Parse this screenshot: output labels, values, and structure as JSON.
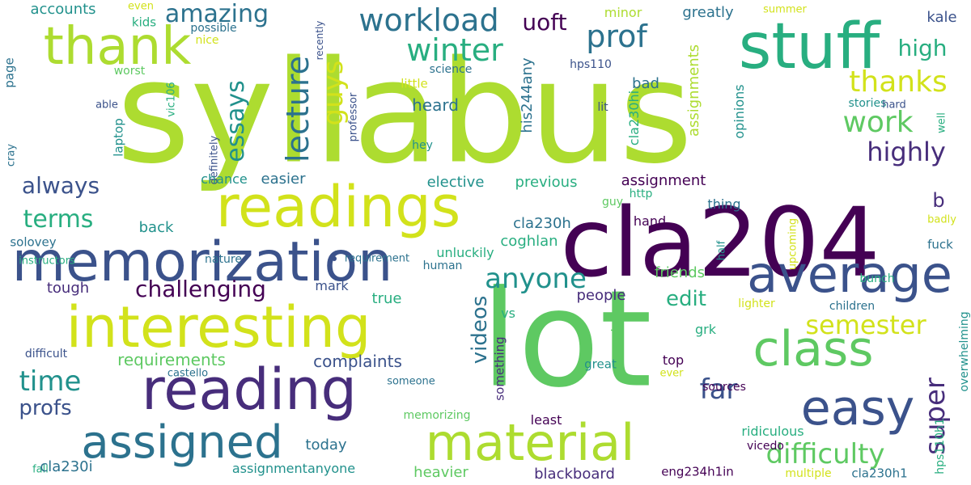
{
  "colors": {
    "purple": "#440154",
    "indigo": "#472d7b",
    "blue": "#3b528b",
    "slate": "#2c728e",
    "teal": "#21918c",
    "green": "#28ae80",
    "lime_green": "#5ec962",
    "yellow_green": "#addc30",
    "yellow": "#d2e21b"
  },
  "words": [
    {
      "text": "syllabus",
      "color": "yellow_green"
    },
    {
      "text": "cla204",
      "color": "purple"
    },
    {
      "text": "lot",
      "color": "lime_green"
    },
    {
      "text": "stuff",
      "color": "green"
    },
    {
      "text": "thank",
      "color": "yellow_green"
    },
    {
      "text": "readings",
      "color": "yellow"
    },
    {
      "text": "memorization",
      "color": "blue"
    },
    {
      "text": "interesting",
      "color": "yellow"
    },
    {
      "text": "average",
      "color": "blue"
    },
    {
      "text": "reading",
      "color": "indigo"
    },
    {
      "text": "class",
      "color": "lime_green"
    },
    {
      "text": "easy",
      "color": "blue"
    },
    {
      "text": "material",
      "color": "yellow_green"
    },
    {
      "text": "assigned",
      "color": "slate"
    },
    {
      "text": "workload",
      "color": "slate"
    },
    {
      "text": "winter",
      "color": "green"
    },
    {
      "text": "prof",
      "color": "slate"
    },
    {
      "text": "lecture",
      "color": "slate"
    },
    {
      "text": "guys",
      "color": "yellow"
    },
    {
      "text": "essays",
      "color": "teal"
    },
    {
      "text": "amazing",
      "color": "slate"
    },
    {
      "text": "uoft",
      "color": "purple"
    },
    {
      "text": "thanks",
      "color": "yellow"
    },
    {
      "text": "high",
      "color": "green"
    },
    {
      "text": "work",
      "color": "lime_green"
    },
    {
      "text": "highly",
      "color": "indigo"
    },
    {
      "text": "terms",
      "color": "green"
    },
    {
      "text": "always",
      "color": "blue"
    },
    {
      "text": "anyone",
      "color": "teal"
    },
    {
      "text": "challenging",
      "color": "purple"
    },
    {
      "text": "semester",
      "color": "yellow"
    },
    {
      "text": "edit",
      "color": "green"
    },
    {
      "text": "time",
      "color": "teal"
    },
    {
      "text": "far",
      "color": "blue"
    },
    {
      "text": "super",
      "color": "indigo"
    },
    {
      "text": "difficulty",
      "color": "lime_green"
    },
    {
      "text": "profs",
      "color": "blue"
    },
    {
      "text": "videos",
      "color": "slate"
    },
    {
      "text": "complaints",
      "color": "blue"
    },
    {
      "text": "requirements",
      "color": "lime_green"
    },
    {
      "text": "accounts",
      "color": "teal"
    },
    {
      "text": "kids",
      "color": "green"
    },
    {
      "text": "even",
      "color": "yellow"
    },
    {
      "text": "possible",
      "color": "slate"
    },
    {
      "text": "nice",
      "color": "yellow"
    },
    {
      "text": "recently",
      "color": "blue"
    },
    {
      "text": "minor",
      "color": "yellow_green"
    },
    {
      "text": "greatly",
      "color": "slate"
    },
    {
      "text": "summer",
      "color": "yellow"
    },
    {
      "text": "kale",
      "color": "blue"
    },
    {
      "text": "page",
      "color": "slate"
    },
    {
      "text": "worst",
      "color": "lime_green"
    },
    {
      "text": "vic106",
      "color": "green"
    },
    {
      "text": "science",
      "color": "slate"
    },
    {
      "text": "his244any",
      "color": "slate"
    },
    {
      "text": "hps110",
      "color": "blue"
    },
    {
      "text": "assignments",
      "color": "yellow_green"
    },
    {
      "text": "opinions",
      "color": "teal"
    },
    {
      "text": "little",
      "color": "yellow"
    },
    {
      "text": "bad",
      "color": "slate"
    },
    {
      "text": "able",
      "color": "blue"
    },
    {
      "text": "laptop",
      "color": "teal"
    },
    {
      "text": "professor",
      "color": "blue"
    },
    {
      "text": "heard",
      "color": "slate"
    },
    {
      "text": "cla230hi",
      "color": "green"
    },
    {
      "text": "lit",
      "color": "blue"
    },
    {
      "text": "stories",
      "color": "teal"
    },
    {
      "text": "hard",
      "color": "blue"
    },
    {
      "text": "well",
      "color": "green"
    },
    {
      "text": "definitely",
      "color": "blue"
    },
    {
      "text": "hey",
      "color": "teal"
    },
    {
      "text": "cray",
      "color": "slate"
    },
    {
      "text": "chance",
      "color": "teal"
    },
    {
      "text": "easier",
      "color": "slate"
    },
    {
      "text": "elective",
      "color": "teal"
    },
    {
      "text": "previous",
      "color": "green"
    },
    {
      "text": "assignment",
      "color": "purple"
    },
    {
      "text": "b",
      "color": "indigo"
    },
    {
      "text": "solovey",
      "color": "slate"
    },
    {
      "text": "guy",
      "color": "lime_green"
    },
    {
      "text": "http",
      "color": "green"
    },
    {
      "text": "thing",
      "color": "slate"
    },
    {
      "text": "badly",
      "color": "yellow"
    },
    {
      "text": "back",
      "color": "teal"
    },
    {
      "text": "cla230h",
      "color": "slate"
    },
    {
      "text": "hand",
      "color": "purple"
    },
    {
      "text": "instructors",
      "color": "green"
    },
    {
      "text": "nature",
      "color": "slate"
    },
    {
      "text": "requirement",
      "color": "slate"
    },
    {
      "text": "coghlan",
      "color": "green"
    },
    {
      "text": "half",
      "color": "teal"
    },
    {
      "text": "upcoming",
      "color": "yellow"
    },
    {
      "text": "fuck",
      "color": "slate"
    },
    {
      "text": "unluckily",
      "color": "green"
    },
    {
      "text": "tough",
      "color": "indigo"
    },
    {
      "text": "human",
      "color": "slate"
    },
    {
      "text": "friends",
      "color": "lime_green"
    },
    {
      "text": "bunch",
      "color": "green"
    },
    {
      "text": "mark",
      "color": "blue"
    },
    {
      "text": "true",
      "color": "green"
    },
    {
      "text": "people",
      "color": "indigo"
    },
    {
      "text": "lighter",
      "color": "yellow"
    },
    {
      "text": "children",
      "color": "slate"
    },
    {
      "text": "grk",
      "color": "green"
    },
    {
      "text": "vs",
      "color": "green"
    },
    {
      "text": "difficult",
      "color": "blue"
    },
    {
      "text": "something",
      "color": "indigo"
    },
    {
      "text": "greek",
      "color": "lime_green"
    },
    {
      "text": "top",
      "color": "purple"
    },
    {
      "text": "great",
      "color": "teal"
    },
    {
      "text": "castello",
      "color": "slate"
    },
    {
      "text": "someone",
      "color": "slate"
    },
    {
      "text": "ever",
      "color": "yellow"
    },
    {
      "text": "sources",
      "color": "purple"
    },
    {
      "text": "overwhelming",
      "color": "teal"
    },
    {
      "text": "hps110h1",
      "color": "green"
    },
    {
      "text": "memorizing",
      "color": "lime_green"
    },
    {
      "text": "least",
      "color": "purple"
    },
    {
      "text": "ridiculous",
      "color": "green"
    },
    {
      "text": "today",
      "color": "slate"
    },
    {
      "text": "vicedo",
      "color": "purple"
    },
    {
      "text": "fall",
      "color": "green"
    },
    {
      "text": "cla230i",
      "color": "slate"
    },
    {
      "text": "assignmentanyone",
      "color": "teal"
    },
    {
      "text": "heavier",
      "color": "lime_green"
    },
    {
      "text": "blackboard",
      "color": "indigo"
    },
    {
      "text": "eng234h1in",
      "color": "purple"
    },
    {
      "text": "multiple",
      "color": "yellow"
    },
    {
      "text": "cla230h1",
      "color": "slate"
    }
  ]
}
